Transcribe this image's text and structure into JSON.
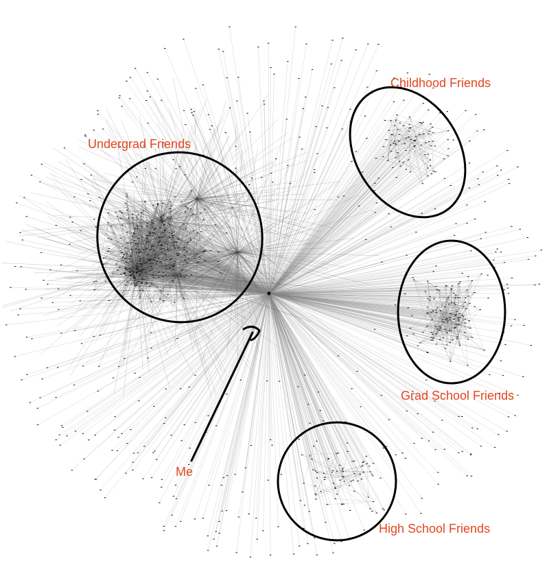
{
  "labels": {
    "childhood": "Childhood Friends",
    "undergrad": "Undergrad Friends",
    "grad": "Grad School Friends",
    "high_school": "High School Friends",
    "me": "Me"
  },
  "colors": {
    "label": "#e2451f",
    "outline": "#000000",
    "edge": "#9a9a9a",
    "node": "#111111"
  }
}
